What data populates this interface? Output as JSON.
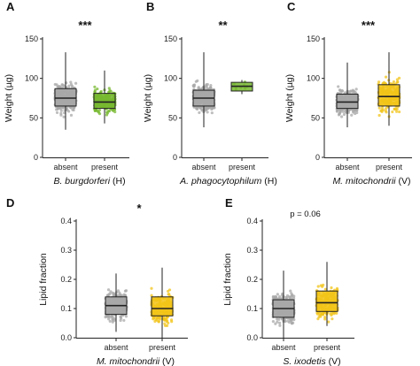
{
  "chart_data": [
    {
      "panel": "A",
      "type": "box",
      "ylabel": "Weight (µg)",
      "xlabel": "B. burgdorferi (H)",
      "significance": "***",
      "ylim": [
        0,
        150
      ],
      "yticks": [
        0,
        50,
        100,
        150
      ],
      "groups": [
        {
          "category": "absent",
          "color": "#a8a8a8",
          "min": 35,
          "q1": 65,
          "median": 75,
          "q3": 87,
          "max": 133
        },
        {
          "category": "present",
          "color": "#77b82f",
          "min": 43,
          "q1": 62,
          "median": 70,
          "q3": 81,
          "max": 110
        }
      ]
    },
    {
      "panel": "B",
      "type": "box",
      "ylabel": "Weight (µg)",
      "xlabel": "A. phagocytophilum (H)",
      "significance": "**",
      "ylim": [
        0,
        150
      ],
      "yticks": [
        0,
        50,
        100,
        150
      ],
      "groups": [
        {
          "category": "absent",
          "color": "#a8a8a8",
          "min": 38,
          "q1": 65,
          "median": 75,
          "q3": 85,
          "max": 133
        },
        {
          "category": "present",
          "color": "#77b82f",
          "min": 80,
          "q1": 84,
          "median": 90,
          "q3": 95,
          "max": 98
        }
      ]
    },
    {
      "panel": "C",
      "type": "box",
      "ylabel": "Weight (µg)",
      "xlabel": "M. mitochondrii (V)",
      "significance": "***",
      "ylim": [
        0,
        150
      ],
      "yticks": [
        0,
        50,
        100,
        150
      ],
      "groups": [
        {
          "category": "absent",
          "color": "#a8a8a8",
          "min": 38,
          "q1": 62,
          "median": 70,
          "q3": 80,
          "max": 120
        },
        {
          "category": "present",
          "color": "#f2c419",
          "min": 40,
          "q1": 65,
          "median": 77,
          "q3": 92,
          "max": 133
        }
      ]
    },
    {
      "panel": "D",
      "type": "box",
      "ylabel": "Lipid fraction",
      "xlabel": "M. mitochondrii (V)",
      "significance": "*",
      "ylim": [
        0,
        0.4
      ],
      "yticks": [
        "0.0",
        "0.1",
        "0.2",
        "0.3",
        "0.4"
      ],
      "groups": [
        {
          "category": "absent",
          "color": "#a8a8a8",
          "min": 0.02,
          "q1": 0.08,
          "median": 0.11,
          "q3": 0.14,
          "max": 0.22
        },
        {
          "category": "present",
          "color": "#f2c419",
          "min": 0.0,
          "q1": 0.075,
          "median": 0.1,
          "q3": 0.14,
          "max": 0.24
        }
      ]
    },
    {
      "panel": "E",
      "type": "box",
      "ylabel": "Lipid fraction",
      "xlabel": "S. ixodetis (V)",
      "significance": "p = 0.06",
      "ylim": [
        0,
        0.4
      ],
      "yticks": [
        "0.0",
        "0.1",
        "0.2",
        "0.3",
        "0.4"
      ],
      "groups": [
        {
          "category": "absent",
          "color": "#a8a8a8",
          "min": 0.0,
          "q1": 0.07,
          "median": 0.1,
          "q3": 0.13,
          "max": 0.23
        },
        {
          "category": "present",
          "color": "#f2c419",
          "min": 0.04,
          "q1": 0.09,
          "median": 0.12,
          "q3": 0.16,
          "max": 0.26
        }
      ]
    }
  ]
}
